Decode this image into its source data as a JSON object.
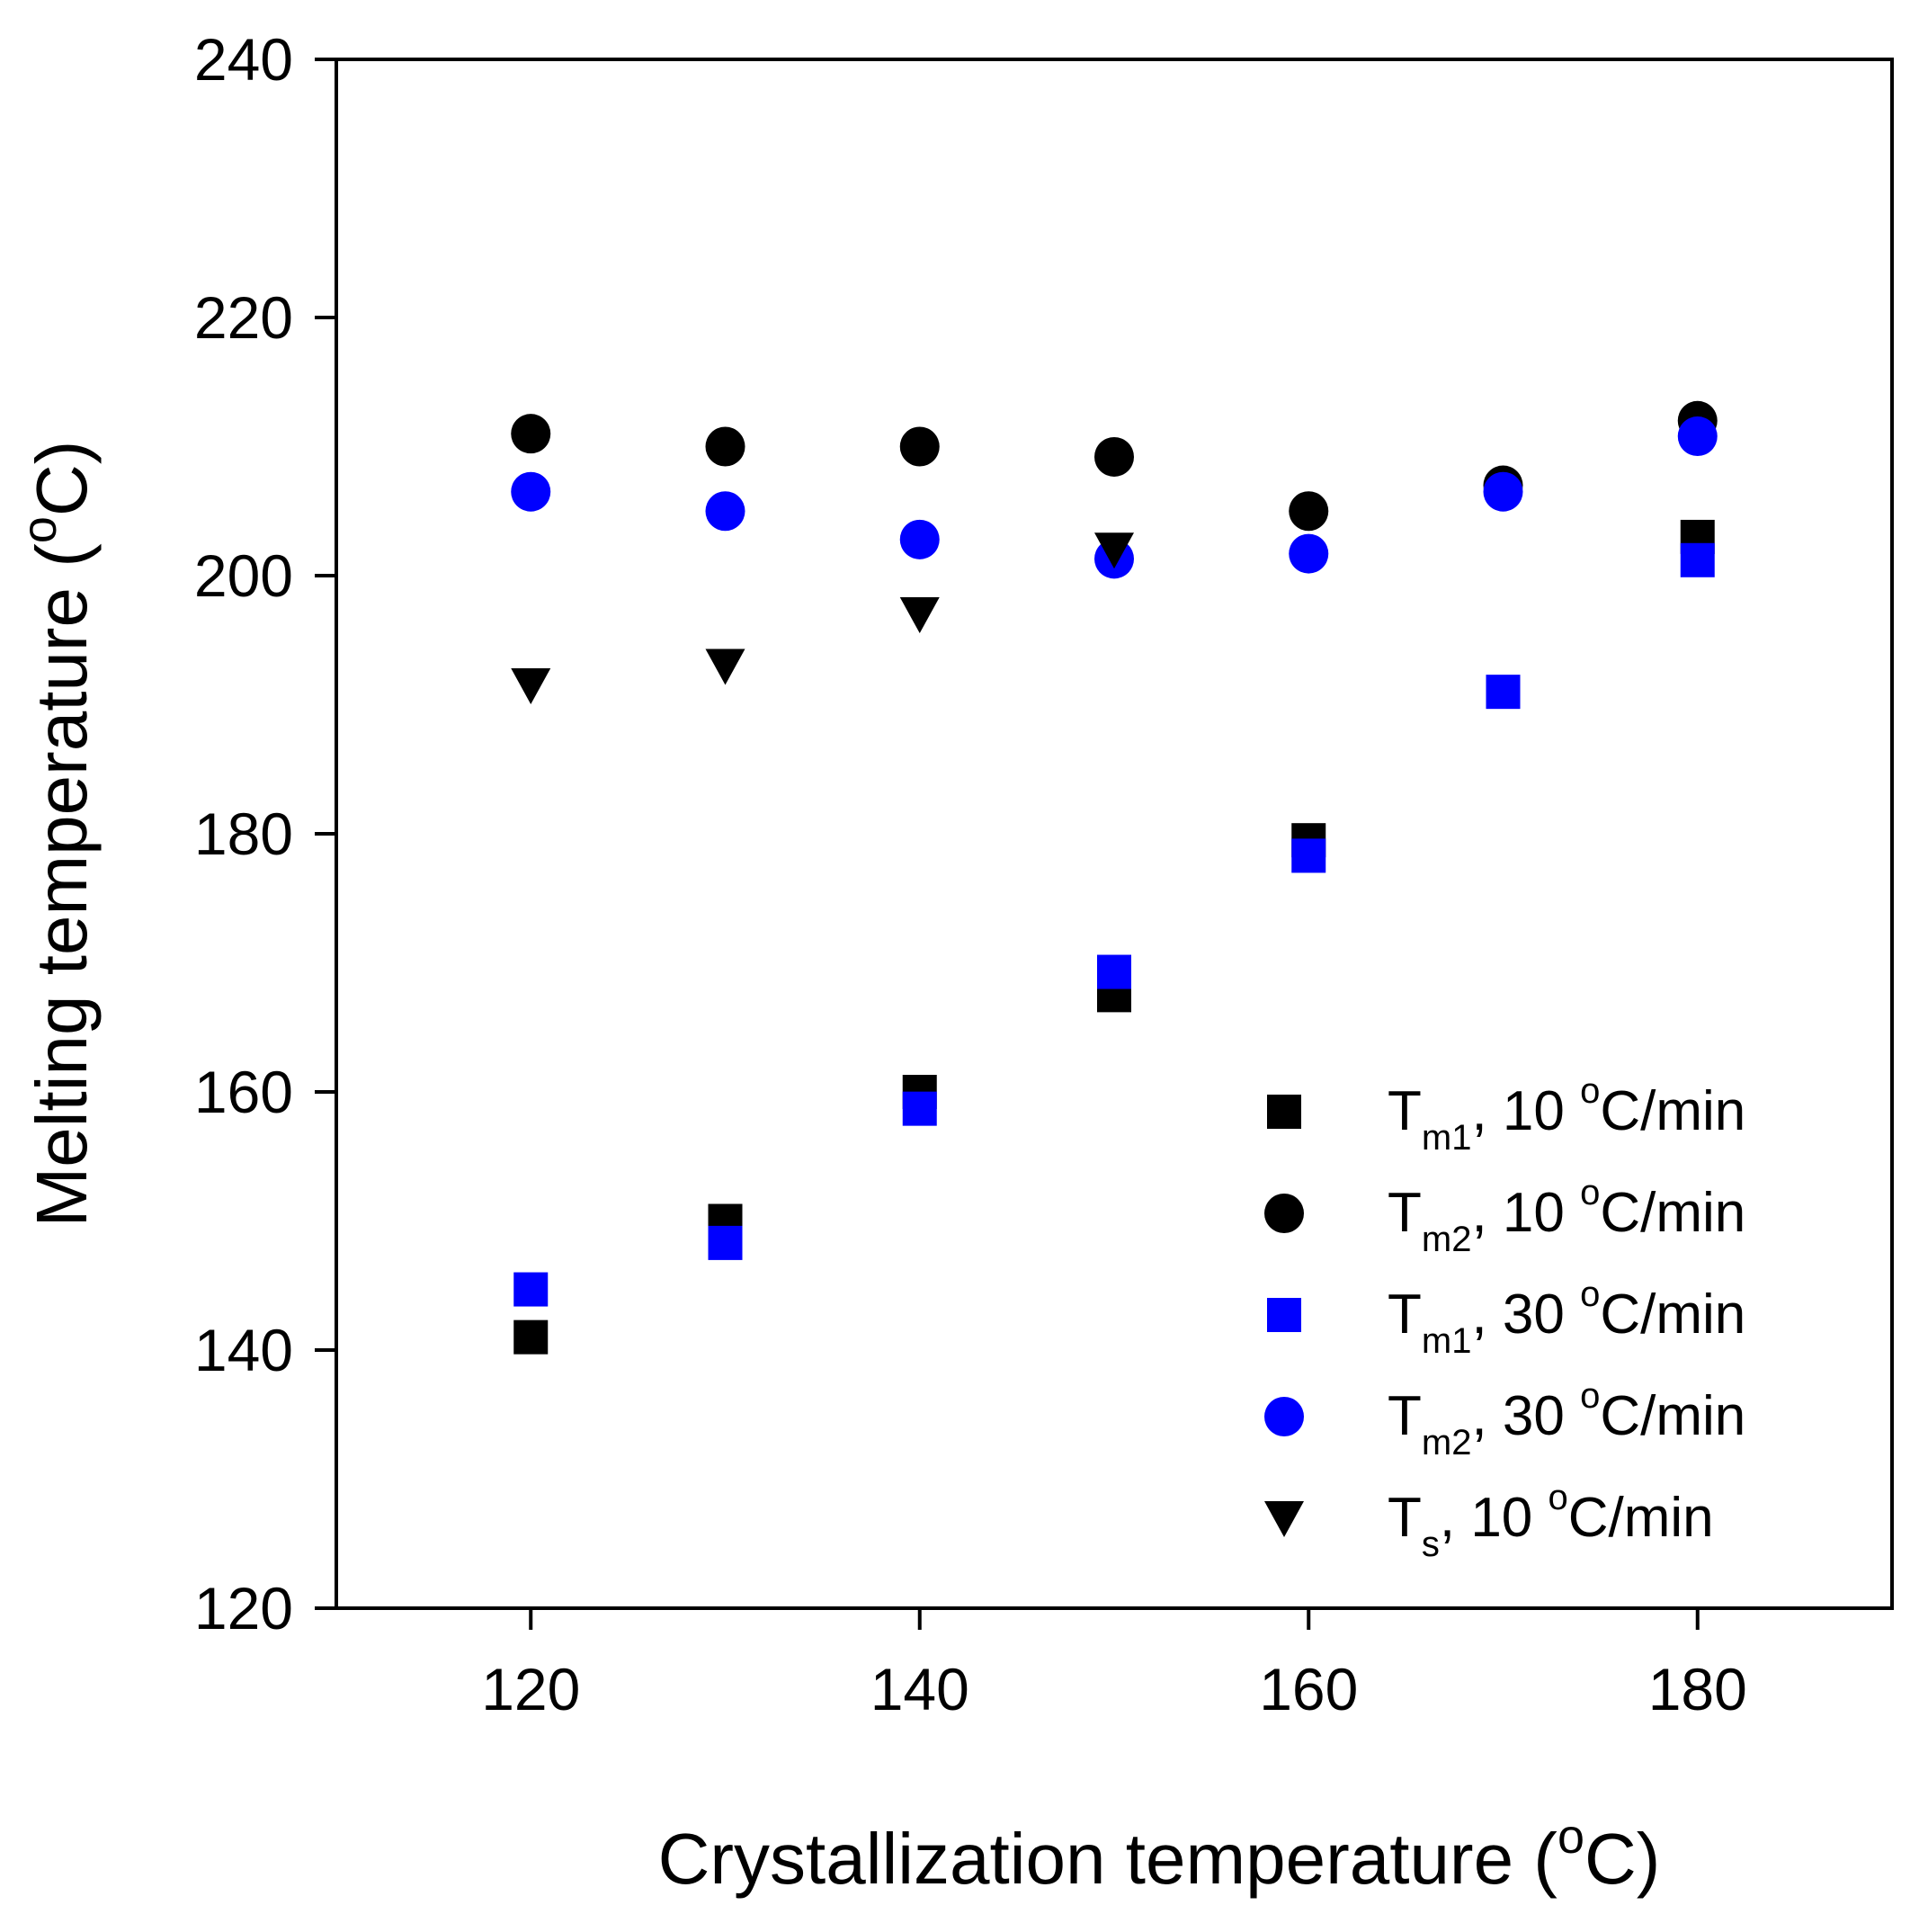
{
  "chart_data": {
    "type": "scatter",
    "title": "",
    "xlabel": {
      "text": "Crystallization temperature (",
      "sup": "o",
      "end": "C)"
    },
    "ylabel": {
      "text": "Melting temperature (",
      "sup": "o",
      "end": "C)"
    },
    "xlim": [
      110,
      190
    ],
    "ylim": [
      120,
      240
    ],
    "xticks": [
      120,
      140,
      160,
      180
    ],
    "yticks": [
      120,
      140,
      160,
      180,
      200,
      220,
      240
    ],
    "grid": false,
    "legend_position": "bottom-right",
    "series": [
      {
        "name": "Tm1, 10 °C/min",
        "label_main": "T",
        "label_sub": "m1",
        "label_rest": ", 10 ",
        "label_sup": "o",
        "label_end": "C/min",
        "marker": "square",
        "color": "#000000",
        "x": [
          120,
          130,
          140,
          150,
          160,
          180
        ],
        "y": [
          141,
          150,
          160,
          167.5,
          179.5,
          203
        ]
      },
      {
        "name": "Tm2, 10 °C/min",
        "label_main": "T",
        "label_sub": "m2",
        "label_rest": ", 10 ",
        "label_sup": "o",
        "label_end": "C/min",
        "marker": "circle",
        "color": "#000000",
        "x": [
          120,
          130,
          140,
          150,
          160,
          170,
          180
        ],
        "y": [
          211,
          210,
          210,
          209.2,
          205,
          207,
          212
        ]
      },
      {
        "name": "Tm1, 30 °C/min",
        "label_main": "T",
        "label_sub": "m1",
        "label_rest": ", 30 ",
        "label_sup": "o",
        "label_end": "C/min",
        "marker": "square",
        "color": "#0000ff",
        "x": [
          120,
          130,
          140,
          150,
          160,
          170,
          180
        ],
        "y": [
          144.7,
          148.3,
          158.7,
          169.3,
          178.3,
          191,
          201.2
        ]
      },
      {
        "name": "Tm2, 30 °C/min",
        "label_main": "T",
        "label_sub": "m2",
        "label_rest": ", 30 ",
        "label_sup": "o",
        "label_end": "C/min",
        "marker": "circle",
        "color": "#0000ff",
        "x": [
          120,
          130,
          140,
          150,
          160,
          170,
          180
        ],
        "y": [
          206.5,
          205,
          202.8,
          201.3,
          201.7,
          206.5,
          210.8
        ]
      },
      {
        "name": "Ts, 10 °C/min",
        "label_main": "T",
        "label_sub": "s",
        "label_rest": ", 10 ",
        "label_sup": "o",
        "label_end": "C/min",
        "marker": "triangle-down",
        "color": "#000000",
        "x": [
          120,
          130,
          140,
          150
        ],
        "y": [
          191.5,
          193,
          197,
          202
        ]
      }
    ]
  }
}
